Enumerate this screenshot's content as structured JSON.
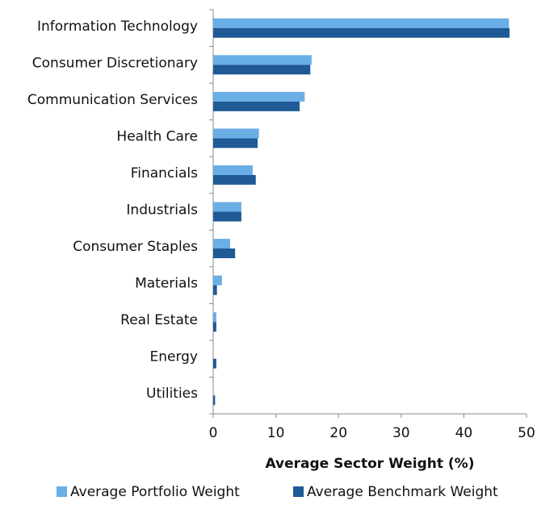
{
  "chart_data": {
    "type": "bar",
    "orientation": "horizontal",
    "xlabel": "Average Sector Weight (%)",
    "categories": [
      "Information Technology",
      "Consumer Discretionary",
      "Communication Services",
      "Health Care",
      "Financials",
      "Industrials",
      "Consumer Staples",
      "Materials",
      "Real Estate",
      "Energy",
      "Utilities"
    ],
    "series": [
      {
        "name": "Average Portfolio Weight",
        "color": "#6aaee6",
        "values": [
          47.2,
          15.7,
          14.6,
          7.3,
          6.3,
          4.5,
          2.7,
          1.4,
          0.5,
          0,
          0
        ]
      },
      {
        "name": "Average Benchmark Weight",
        "color": "#1f5a96",
        "values": [
          47.3,
          15.5,
          13.8,
          7.1,
          6.8,
          4.5,
          3.5,
          0.6,
          0.5,
          0.5,
          0.3
        ]
      }
    ],
    "xlim": [
      0,
      50
    ],
    "xticks": [
      0,
      10,
      20,
      30,
      40,
      50
    ],
    "legend": "bottom"
  }
}
